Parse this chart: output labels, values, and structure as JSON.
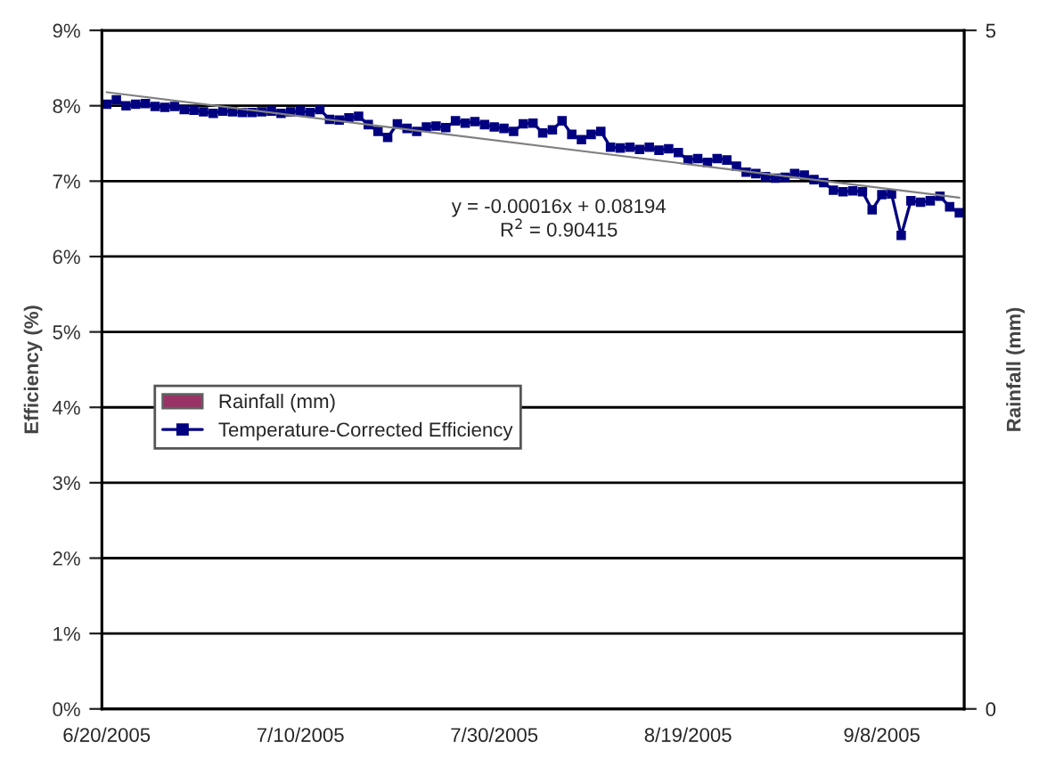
{
  "chart_data": {
    "type": "line",
    "ylabel": "Efficiency (%)",
    "y2label": "Rainfall (mm)",
    "categories": [
      "6/20/2005",
      null,
      null,
      null,
      null,
      null,
      null,
      null,
      null,
      null,
      null,
      null,
      null,
      null,
      null,
      null,
      null,
      null,
      null,
      null,
      "7/10/2005",
      null,
      null,
      null,
      null,
      null,
      null,
      null,
      null,
      null,
      null,
      null,
      null,
      null,
      null,
      null,
      null,
      null,
      null,
      null,
      "7/30/2005",
      null,
      null,
      null,
      null,
      null,
      null,
      null,
      null,
      null,
      null,
      null,
      null,
      null,
      null,
      null,
      null,
      null,
      null,
      null,
      "8/19/2005",
      null,
      null,
      null,
      null,
      null,
      null,
      null,
      null,
      null,
      null,
      null,
      null,
      null,
      null,
      null,
      null,
      null,
      null,
      null,
      "9/8/2005",
      null,
      null,
      null,
      null,
      null,
      null,
      null,
      null
    ],
    "series": [
      {
        "name": "Rainfall (mm)",
        "type": "bar",
        "color": "#993366",
        "values": [
          null,
          null,
          null,
          null,
          null,
          null,
          null,
          null,
          null,
          null,
          null,
          null,
          null,
          null,
          null,
          null,
          null,
          null,
          null,
          null,
          null,
          null,
          null,
          null,
          null,
          null,
          null,
          null,
          null,
          null,
          null,
          null,
          null,
          null,
          null,
          null,
          null,
          null,
          null,
          null,
          null,
          null,
          null,
          null,
          null,
          null,
          null,
          null,
          null,
          null,
          null,
          null,
          null,
          null,
          null,
          null,
          null,
          null,
          null,
          null,
          null,
          null,
          null,
          null,
          null,
          null,
          null,
          null,
          null,
          null,
          null,
          null,
          null,
          null,
          null,
          null,
          null,
          null,
          null,
          null,
          null,
          null,
          null,
          null,
          null,
          null,
          null,
          null,
          null
        ]
      },
      {
        "name": "Temperature-Corrected Efficiency",
        "color": "#000080",
        "marker": "square",
        "values": [
          8.02,
          8.08,
          8.0,
          8.02,
          8.03,
          7.99,
          7.98,
          7.99,
          7.95,
          7.94,
          7.92,
          7.9,
          7.93,
          7.92,
          7.91,
          7.91,
          7.92,
          7.93,
          7.9,
          7.92,
          7.93,
          7.91,
          7.95,
          7.82,
          7.81,
          7.84,
          7.86,
          7.75,
          7.66,
          7.58,
          7.76,
          7.7,
          7.66,
          7.72,
          7.73,
          7.71,
          7.8,
          7.77,
          7.79,
          7.75,
          7.72,
          7.7,
          7.66,
          7.76,
          7.77,
          7.64,
          7.68,
          7.8,
          7.62,
          7.55,
          7.62,
          7.66,
          7.45,
          7.44,
          7.45,
          7.42,
          7.45,
          7.41,
          7.43,
          7.38,
          7.28,
          7.3,
          7.25,
          7.3,
          7.28,
          7.2,
          7.12,
          7.1,
          7.06,
          7.04,
          7.05,
          7.1,
          7.08,
          7.02,
          6.98,
          6.88,
          6.86,
          6.87,
          6.86,
          6.62,
          6.82,
          6.83,
          6.28,
          6.74,
          6.72,
          6.74,
          6.8,
          6.66,
          6.58
        ]
      },
      {
        "color": "#808080",
        "marker": "none",
        "values": [
          8.18,
          null,
          null,
          null,
          null,
          null,
          null,
          null,
          null,
          null,
          null,
          null,
          null,
          null,
          null,
          null,
          null,
          null,
          null,
          null,
          null,
          null,
          null,
          null,
          null,
          null,
          null,
          null,
          null,
          null,
          null,
          null,
          null,
          null,
          null,
          null,
          null,
          null,
          null,
          null,
          null,
          null,
          null,
          null,
          null,
          null,
          null,
          null,
          null,
          null,
          null,
          null,
          null,
          null,
          null,
          null,
          null,
          null,
          null,
          null,
          null,
          null,
          null,
          null,
          null,
          null,
          null,
          null,
          null,
          null,
          null,
          null,
          null,
          null,
          null,
          null,
          null,
          null,
          null,
          null,
          null,
          null,
          null,
          null,
          null,
          null,
          null,
          null,
          6.78
        ]
      }
    ],
    "ylim": [
      0,
      9
    ],
    "yticks": [
      {
        "value": 0,
        "label": "0%"
      },
      {
        "value": 1,
        "label": "1%"
      },
      {
        "value": 2,
        "label": "2%"
      },
      {
        "value": 3,
        "label": "3%"
      },
      {
        "value": 4,
        "label": "4%"
      },
      {
        "value": 5,
        "label": "5%"
      },
      {
        "value": 6,
        "label": "6%"
      },
      {
        "value": 7,
        "label": "7%"
      },
      {
        "value": 8,
        "label": "8%"
      },
      {
        "value": 9,
        "label": "9%"
      }
    ],
    "y2lim": [
      0,
      5
    ],
    "y2ticks": [
      0,
      5
    ],
    "grid": "y",
    "legend": "center left",
    "annotations": [
      "y = -0.00016x + 0.08194",
      "R$^{2}$ = 0.90415"
    ]
  }
}
